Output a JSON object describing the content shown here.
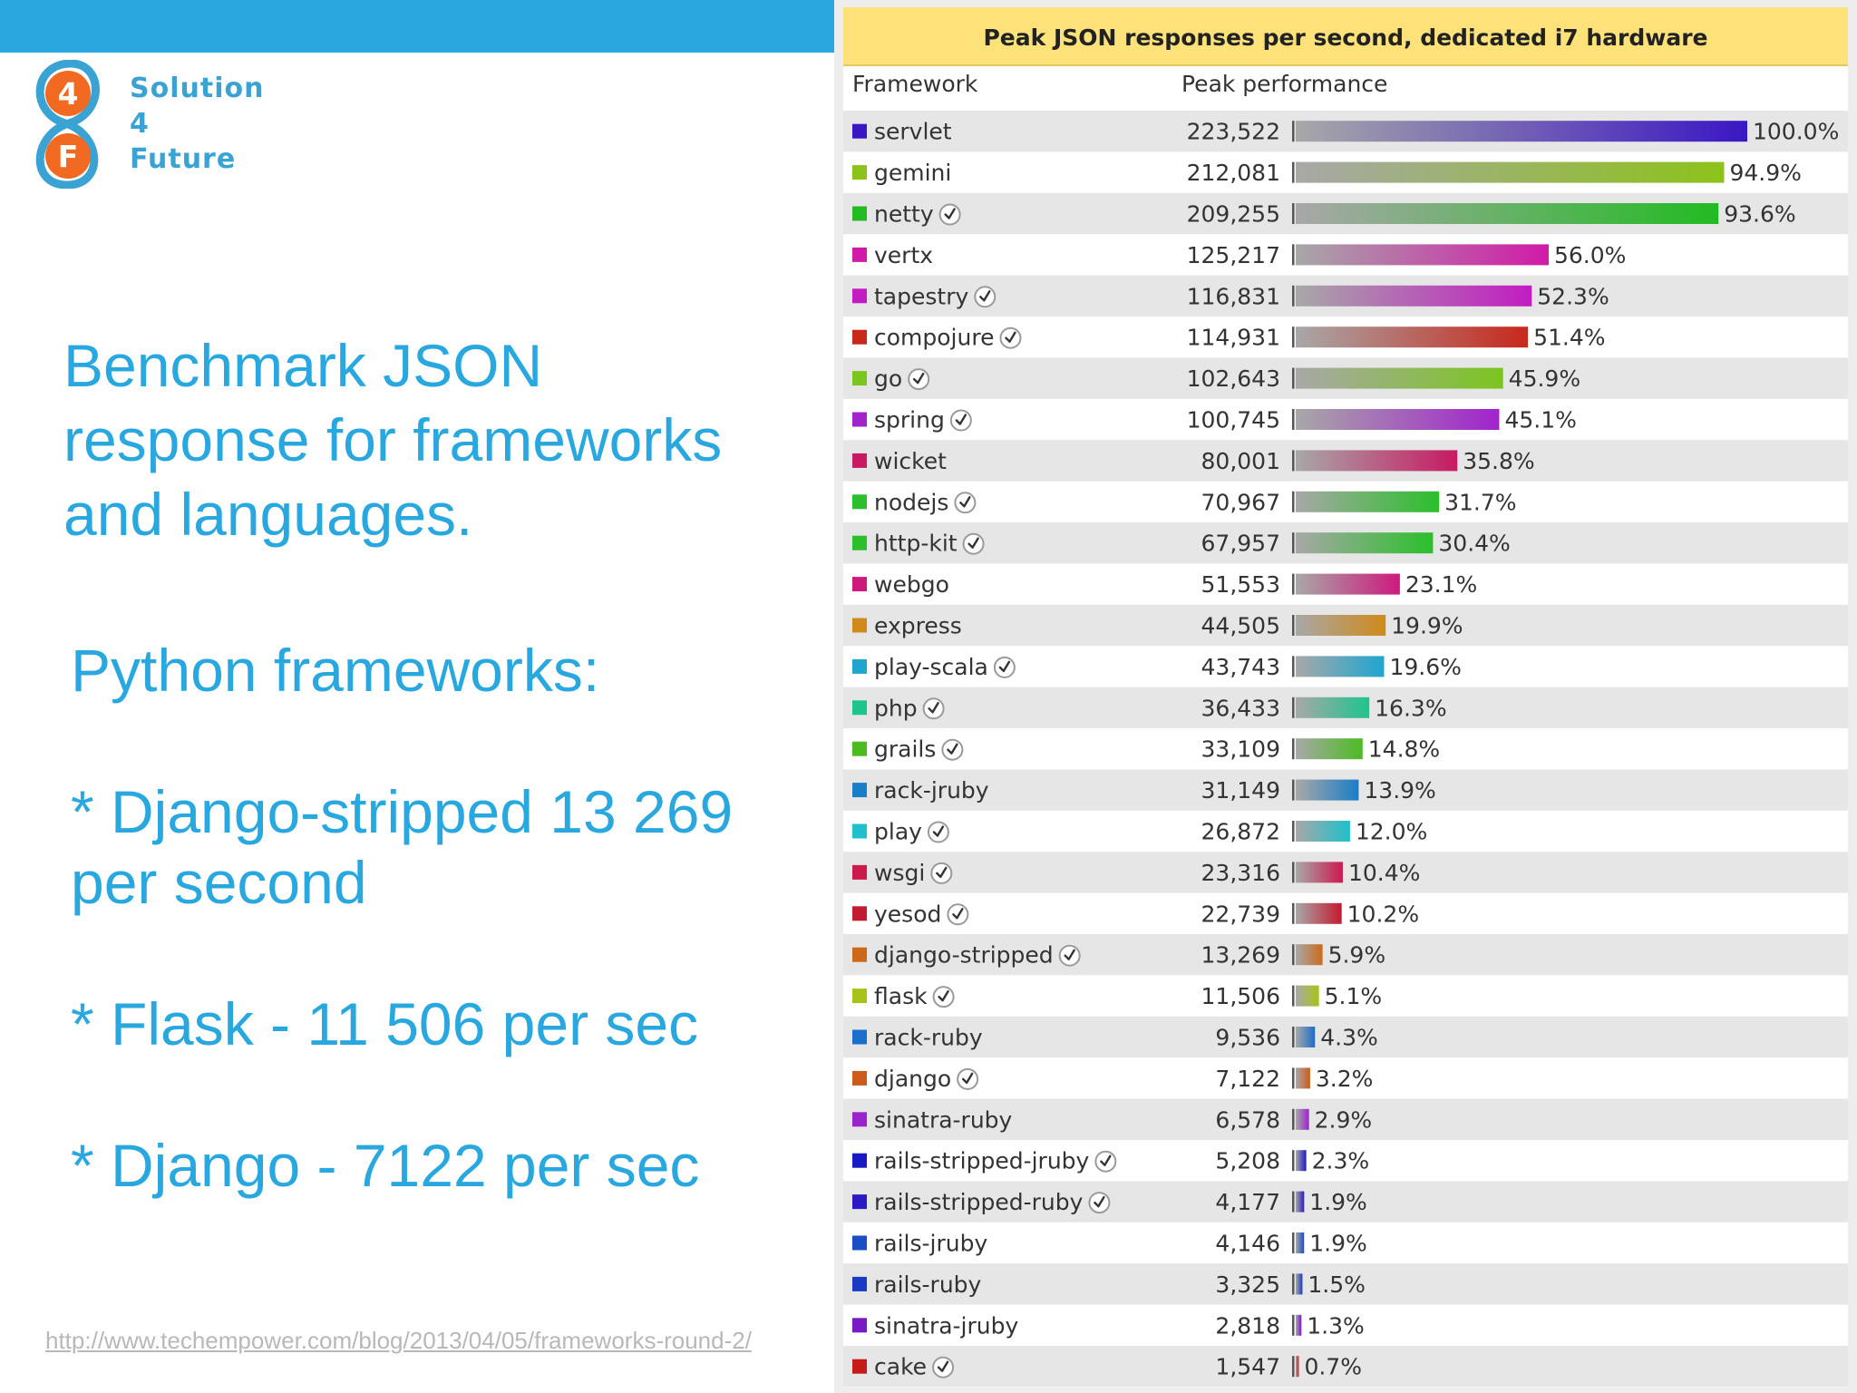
{
  "logo": {
    "lines": [
      "Solution",
      "4",
      "Future"
    ],
    "badge_top": "4",
    "badge_bottom": "F"
  },
  "slide": {
    "title_lines": [
      "Benchmark JSON",
      "response for frameworks",
      "and languages."
    ],
    "subtitle": "Python frameworks:",
    "point1_line1": "* Django-stripped 13 269",
    "point1_line2": "per second",
    "point2": "* Flask - 11 506 per sec",
    "point3": "* Django - 7122 per sec",
    "source_url": "http://www.techempower.com/blog/2013/04/05/frameworks-round-2/"
  },
  "colors": {
    "accent": "#29a8e0",
    "title_band": "#fde27a",
    "row_alt": "#e6e6e6"
  },
  "chart_data": {
    "type": "bar",
    "orientation": "horizontal",
    "title": "Peak JSON responses per second, dedicated i7 hardware",
    "column_headers": [
      "Framework",
      "Peak performance"
    ],
    "verified_icon": "check-circle-icon",
    "xlim": [
      0,
      223522
    ],
    "rows": [
      {
        "name": "servlet",
        "value": 223522,
        "value_label": "223,522",
        "percent": "100.0%",
        "color": "#3a17c4",
        "verified": false
      },
      {
        "name": "gemini",
        "value": 212081,
        "value_label": "212,081",
        "percent": "94.9%",
        "color": "#8cc21a",
        "verified": false
      },
      {
        "name": "netty",
        "value": 209255,
        "value_label": "209,255",
        "percent": "93.6%",
        "color": "#22bb22",
        "verified": true
      },
      {
        "name": "vertx",
        "value": 125217,
        "value_label": "125,217",
        "percent": "56.0%",
        "color": "#d11aa8",
        "verified": false
      },
      {
        "name": "tapestry",
        "value": 116831,
        "value_label": "116,831",
        "percent": "52.3%",
        "color": "#c21cc2",
        "verified": true
      },
      {
        "name": "compojure",
        "value": 114931,
        "value_label": "114,931",
        "percent": "51.4%",
        "color": "#c8281c",
        "verified": true
      },
      {
        "name": "go",
        "value": 102643,
        "value_label": "102,643",
        "percent": "45.9%",
        "color": "#7cc51f",
        "verified": true
      },
      {
        "name": "spring",
        "value": 100745,
        "value_label": "100,745",
        "percent": "45.1%",
        "color": "#a123cc",
        "verified": true
      },
      {
        "name": "wicket",
        "value": 80001,
        "value_label": "80,001",
        "percent": "35.8%",
        "color": "#c71a62",
        "verified": false
      },
      {
        "name": "nodejs",
        "value": 70967,
        "value_label": "70,967",
        "percent": "31.7%",
        "color": "#2bbf2b",
        "verified": true
      },
      {
        "name": "http-kit",
        "value": 67957,
        "value_label": "67,957",
        "percent": "30.4%",
        "color": "#2bbf2b",
        "verified": true
      },
      {
        "name": "webgo",
        "value": 51553,
        "value_label": "51,553",
        "percent": "23.1%",
        "color": "#cc1a7d",
        "verified": false
      },
      {
        "name": "express",
        "value": 44505,
        "value_label": "44,505",
        "percent": "19.9%",
        "color": "#d08a1a",
        "verified": false
      },
      {
        "name": "play-scala",
        "value": 43743,
        "value_label": "43,743",
        "percent": "19.6%",
        "color": "#1ea6cf",
        "verified": true
      },
      {
        "name": "php",
        "value": 36433,
        "value_label": "36,433",
        "percent": "16.3%",
        "color": "#1ec48e",
        "verified": true
      },
      {
        "name": "grails",
        "value": 33109,
        "value_label": "33,109",
        "percent": "14.8%",
        "color": "#4cbb22",
        "verified": true
      },
      {
        "name": "rack-jruby",
        "value": 31149,
        "value_label": "31,149",
        "percent": "13.9%",
        "color": "#1a7dc7",
        "verified": false
      },
      {
        "name": "play",
        "value": 26872,
        "value_label": "26,872",
        "percent": "12.0%",
        "color": "#1ec0cc",
        "verified": true
      },
      {
        "name": "wsgi",
        "value": 23316,
        "value_label": "23,316",
        "percent": "10.4%",
        "color": "#cc1a4d",
        "verified": true
      },
      {
        "name": "yesod",
        "value": 22739,
        "value_label": "22,739",
        "percent": "10.2%",
        "color": "#c41a2f",
        "verified": true
      },
      {
        "name": "django-stripped",
        "value": 13269,
        "value_label": "13,269",
        "percent": "5.9%",
        "color": "#cc6a1a",
        "verified": true
      },
      {
        "name": "flask",
        "value": 11506,
        "value_label": "11,506",
        "percent": "5.1%",
        "color": "#a8c21a",
        "verified": true
      },
      {
        "name": "rack-ruby",
        "value": 9536,
        "value_label": "9,536",
        "percent": "4.3%",
        "color": "#1a6fcc",
        "verified": false
      },
      {
        "name": "django",
        "value": 7122,
        "value_label": "7,122",
        "percent": "3.2%",
        "color": "#cc5a1a",
        "verified": true
      },
      {
        "name": "sinatra-ruby",
        "value": 6578,
        "value_label": "6,578",
        "percent": "2.9%",
        "color": "#9a23cc",
        "verified": false
      },
      {
        "name": "rails-stripped-jruby",
        "value": 5208,
        "value_label": "5,208",
        "percent": "2.3%",
        "color": "#1a1ac4",
        "verified": true
      },
      {
        "name": "rails-stripped-ruby",
        "value": 4177,
        "value_label": "4,177",
        "percent": "1.9%",
        "color": "#2a1ac4",
        "verified": true
      },
      {
        "name": "rails-jruby",
        "value": 4146,
        "value_label": "4,146",
        "percent": "1.9%",
        "color": "#1a4ec4",
        "verified": false
      },
      {
        "name": "rails-ruby",
        "value": 3325,
        "value_label": "3,325",
        "percent": "1.5%",
        "color": "#1a3ac4",
        "verified": false
      },
      {
        "name": "sinatra-jruby",
        "value": 2818,
        "value_label": "2,818",
        "percent": "1.3%",
        "color": "#7a1ac4",
        "verified": false
      },
      {
        "name": "cake",
        "value": 1547,
        "value_label": "1,547",
        "percent": "0.7%",
        "color": "#c41a1a",
        "verified": true
      }
    ]
  }
}
